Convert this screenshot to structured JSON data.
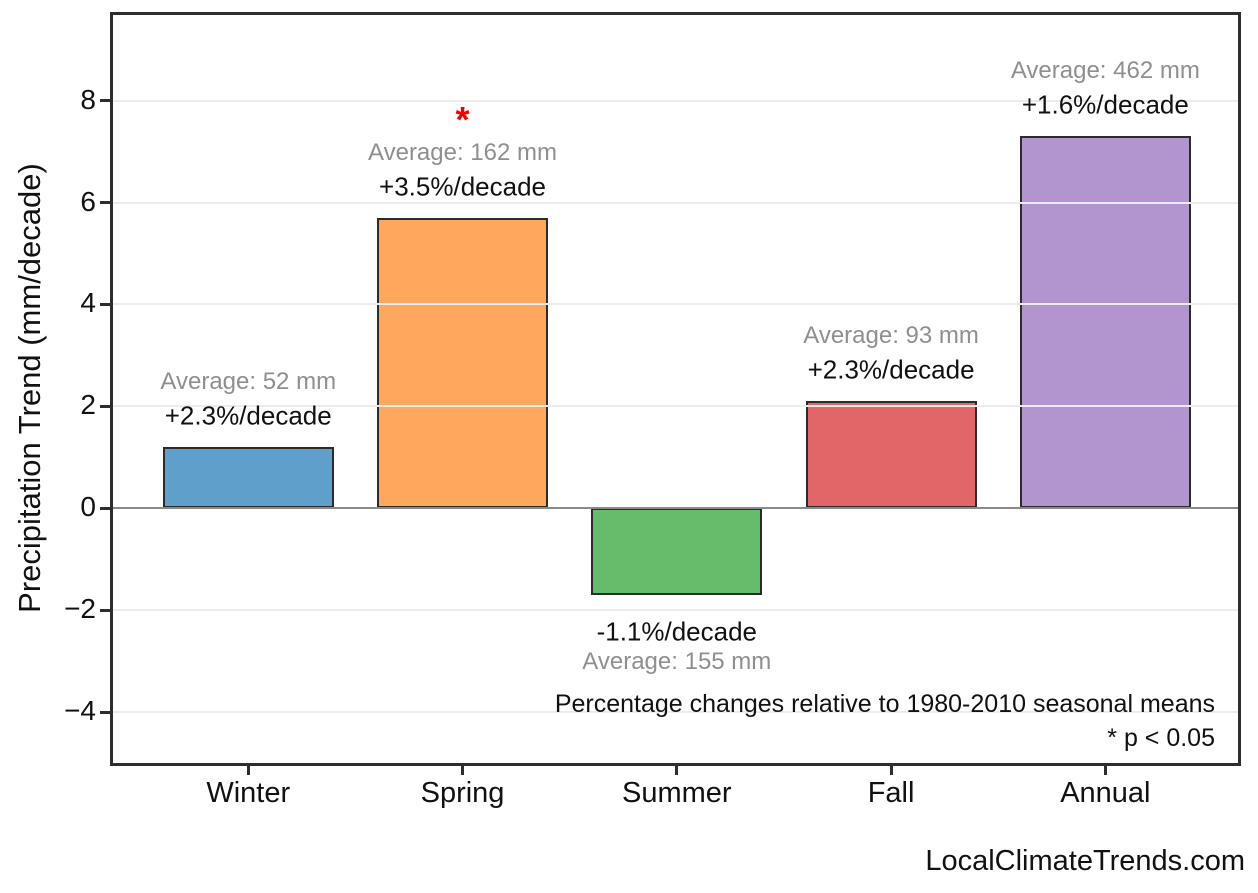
{
  "chart_data": {
    "type": "bar",
    "categories": [
      "Winter",
      "Spring",
      "Summer",
      "Fall",
      "Annual"
    ],
    "values": [
      1.2,
      5.7,
      -1.7,
      2.1,
      7.3
    ],
    "title": "",
    "xlabel": "",
    "ylabel": "Precipitation Trend (mm/decade)",
    "yticks": [
      8,
      6,
      4,
      2,
      0,
      -2,
      -4
    ],
    "ylim": [
      -5.0,
      9.7
    ],
    "grid": true,
    "zero_line": true,
    "legend": "none",
    "bar_colors": [
      "#5e9fcb",
      "#fda85c",
      "#67bc6b",
      "#e26667",
      "#b295ce"
    ],
    "bar_edge_color": "#2b2b2b",
    "bar_labels": {
      "averages": [
        "Average: 52 mm",
        "Average: 162 mm",
        "Average: 155 mm",
        "Average: 93 mm",
        "Average: 462 mm"
      ],
      "trends": [
        "+2.3%/decade",
        "+3.5%/decade",
        "-1.1%/decade",
        "+2.3%/decade",
        "+1.6%/decade"
      ]
    },
    "significant": [
      false,
      true,
      false,
      false,
      false
    ],
    "significance_marker": "*",
    "significance_color": "#f20000",
    "caption_line1": "Percentage changes relative to 1980-2010 seasonal means",
    "caption_line2": "* p < 0.05",
    "text_colors": {
      "average": "#8f8f8f",
      "trend": "#111111"
    }
  },
  "footer": {
    "watermark": "LocalClimateTrends.com"
  }
}
